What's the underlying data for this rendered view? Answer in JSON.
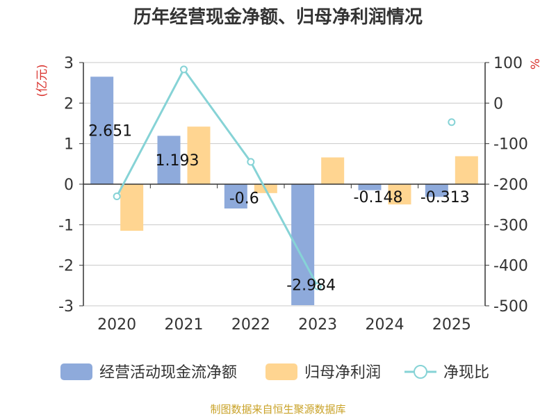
{
  "title": "历年经营现金净额、归母净利润情况",
  "source": "制图数据来自恒生聚源数据库",
  "chart_data": {
    "type": "bar",
    "categories": [
      "2020",
      "2021",
      "2022",
      "2023",
      "2024",
      "2025"
    ],
    "left_axis": {
      "unit": "(亿元)",
      "ylim": [
        -3,
        3
      ],
      "ticks": [
        3,
        2,
        1,
        0,
        -1,
        -2,
        -3
      ]
    },
    "right_axis": {
      "unit": "%",
      "ylim": [
        -500,
        100
      ],
      "ticks": [
        100,
        0,
        -100,
        -200,
        -300,
        -400,
        -500
      ]
    },
    "series": [
      {
        "name": "经营活动现金流净额",
        "kind": "bar",
        "axis": "left",
        "color": "#8eaadb",
        "values": [
          2.651,
          1.193,
          -0.6,
          -2.984,
          -0.148,
          -0.313
        ],
        "labels": [
          "2.651",
          "1.193",
          "-0.6",
          "-2.984",
          "-0.148",
          "-0.313"
        ]
      },
      {
        "name": "归母净利润",
        "kind": "bar",
        "axis": "left",
        "color": "#ffd591",
        "values": [
          -1.15,
          1.42,
          -0.22,
          0.66,
          -0.5,
          0.69
        ]
      },
      {
        "name": "净现比",
        "kind": "line",
        "axis": "right",
        "color": "#86d3d6",
        "values": [
          -230,
          83,
          -145,
          -452,
          null,
          -47
        ]
      }
    ],
    "grid": true,
    "legend": "bottom"
  }
}
